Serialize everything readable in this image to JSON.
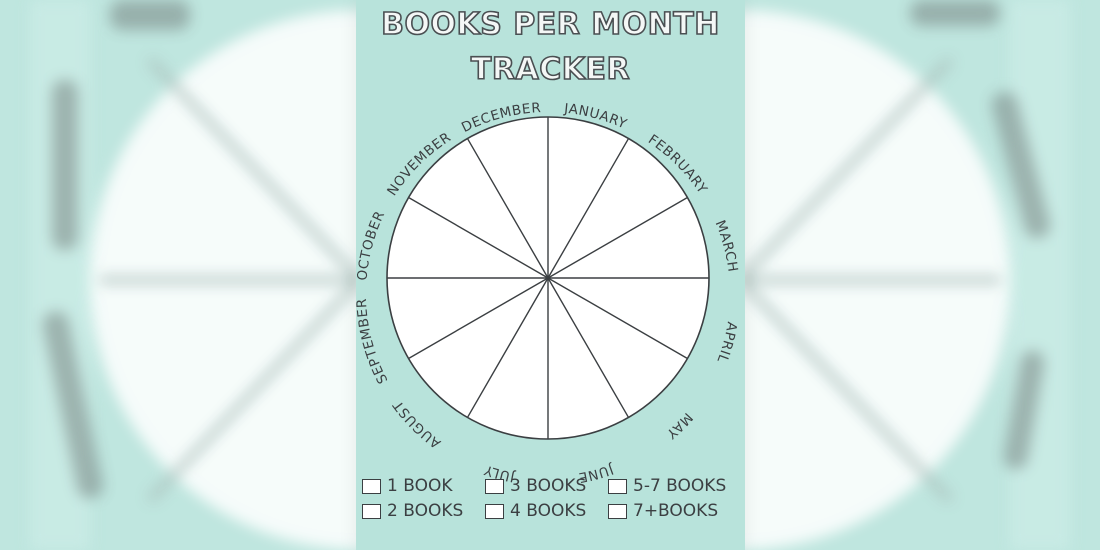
{
  "title": {
    "line1": "BOOKS PER MONTH",
    "line2": "TRACKER"
  },
  "months": [
    "JANUARY",
    "FEBRUARY",
    "MARCH",
    "APRIL",
    "MAY",
    "JUNE",
    "JULY",
    "AUGUST",
    "SEPTEMBER",
    "OCTOBER",
    "NOVEMBER",
    "DECEMBER"
  ],
  "legend": {
    "items": [
      "1 BOOK",
      "2 BOOKS",
      "3 BOOKS",
      "4 BOOKS",
      "5-7 BOOKS",
      "7+BOOKS"
    ]
  },
  "colors": {
    "background": "#bfe6df",
    "poster": "#b8e3db",
    "ink": "#3b3f42",
    "wheel_fill": "#ffffff"
  }
}
